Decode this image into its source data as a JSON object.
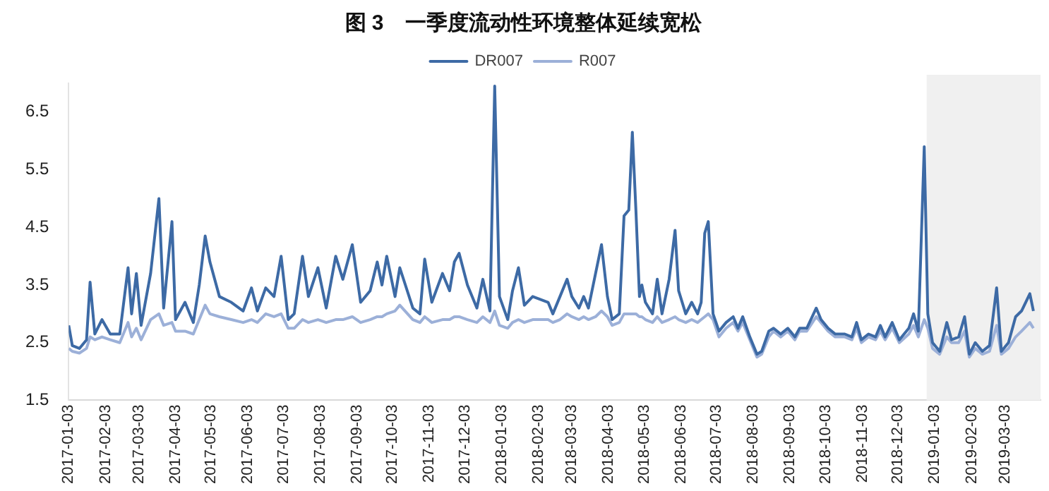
{
  "chart_data": {
    "type": "line",
    "title": "图 3　一季度流动性环境整体延续宽松",
    "legend": "top",
    "grid": false,
    "marker": "none",
    "line_style": "solid",
    "xlim": [
      "2017-01-03",
      "2019-04-02"
    ],
    "xticks": [
      "2017-01-03",
      "2017-02-03",
      "2017-03-03",
      "2017-04-03",
      "2017-05-03",
      "2017-06-03",
      "2017-07-03",
      "2017-08-03",
      "2017-09-03",
      "2017-10-03",
      "2017-11-03",
      "2017-12-03",
      "2018-01-03",
      "2018-02-03",
      "2018-03-03",
      "2018-04-03",
      "2018-05-03",
      "2018-06-03",
      "2018-07-03",
      "2018-08-03",
      "2018-09-03",
      "2018-10-03",
      "2018-11-03",
      "2018-12-03",
      "2019-01-03",
      "2019-02-03",
      "2019-03-03"
    ],
    "ylim": [
      1.5,
      7.0
    ],
    "yticks": [
      1.5,
      2.5,
      3.5,
      4.5,
      5.5,
      6.5
    ],
    "bands": [
      {
        "axis": "x",
        "from": "2018-12-27",
        "to": "2019-04-02",
        "color": "#f0f0f0"
      }
    ],
    "x": [
      "2017-01-03",
      "2017-01-06",
      "2017-01-12",
      "2017-01-18",
      "2017-01-21",
      "2017-01-25",
      "2017-01-31",
      "2017-02-07",
      "2017-02-15",
      "2017-02-22",
      "2017-02-25",
      "2017-03-01",
      "2017-03-05",
      "2017-03-13",
      "2017-03-20",
      "2017-03-24",
      "2017-03-31",
      "2017-04-03",
      "2017-04-11",
      "2017-04-18",
      "2017-04-23",
      "2017-04-28",
      "2017-05-02",
      "2017-05-10",
      "2017-05-20",
      "2017-05-30",
      "2017-06-06",
      "2017-06-11",
      "2017-06-18",
      "2017-06-25",
      "2017-07-01",
      "2017-07-07",
      "2017-07-12",
      "2017-07-19",
      "2017-07-24",
      "2017-08-01",
      "2017-08-08",
      "2017-08-16",
      "2017-08-22",
      "2017-08-30",
      "2017-09-06",
      "2017-09-14",
      "2017-09-20",
      "2017-09-24",
      "2017-09-28",
      "2017-10-05",
      "2017-10-09",
      "2017-10-20",
      "2017-10-26",
      "2017-10-30",
      "2017-11-05",
      "2017-11-14",
      "2017-11-20",
      "2017-11-24",
      "2017-11-28",
      "2017-12-05",
      "2017-12-13",
      "2017-12-18",
      "2017-12-24",
      "2017-12-28",
      "2018-01-01",
      "2018-01-08",
      "2018-01-12",
      "2018-01-17",
      "2018-01-22",
      "2018-01-29",
      "2018-02-11",
      "2018-02-15",
      "2018-02-21",
      "2018-02-27",
      "2018-03-03",
      "2018-03-09",
      "2018-03-13",
      "2018-03-17",
      "2018-03-23",
      "2018-03-28",
      "2018-04-02",
      "2018-04-06",
      "2018-04-12",
      "2018-04-16",
      "2018-04-20",
      "2018-04-23",
      "2018-04-26",
      "2018-04-29",
      "2018-05-01",
      "2018-05-04",
      "2018-05-10",
      "2018-05-14",
      "2018-05-18",
      "2018-05-24",
      "2018-05-29",
      "2018-06-01",
      "2018-06-07",
      "2018-06-12",
      "2018-06-17",
      "2018-06-20",
      "2018-06-23",
      "2018-06-26",
      "2018-06-30",
      "2018-07-05",
      "2018-07-11",
      "2018-07-17",
      "2018-07-21",
      "2018-07-25",
      "2018-07-31",
      "2018-08-06",
      "2018-08-10",
      "2018-08-16",
      "2018-08-20",
      "2018-08-26",
      "2018-09-01",
      "2018-09-07",
      "2018-09-11",
      "2018-09-17",
      "2018-09-25",
      "2018-09-29",
      "2018-10-05",
      "2018-10-11",
      "2018-10-19",
      "2018-10-25",
      "2018-10-29",
      "2018-11-02",
      "2018-11-08",
      "2018-11-14",
      "2018-11-18",
      "2018-11-22",
      "2018-11-28",
      "2018-12-04",
      "2018-12-12",
      "2018-12-16",
      "2018-12-20",
      "2018-12-25",
      "2018-12-28",
      "2019-01-01",
      "2019-01-07",
      "2019-01-13",
      "2019-01-17",
      "2019-01-23",
      "2019-01-28",
      "2019-02-01",
      "2019-02-06",
      "2019-02-12",
      "2019-02-18",
      "2019-02-24",
      "2019-02-28",
      "2019-03-06",
      "2019-03-12",
      "2019-03-17",
      "2019-03-24",
      "2019-03-27"
    ],
    "series": [
      {
        "name": "DR007",
        "color": "#3d6aa5",
        "values": [
          2.8,
          2.45,
          2.4,
          2.55,
          3.55,
          2.65,
          2.9,
          2.65,
          2.65,
          3.8,
          3.0,
          3.7,
          2.8,
          3.7,
          5.0,
          3.1,
          4.6,
          2.9,
          3.2,
          2.85,
          3.5,
          4.35,
          3.9,
          3.3,
          3.2,
          3.05,
          3.45,
          3.05,
          3.45,
          3.3,
          4.0,
          2.9,
          3.0,
          4.0,
          3.3,
          3.8,
          3.1,
          4.0,
          3.6,
          4.2,
          3.2,
          3.4,
          3.9,
          3.5,
          4.0,
          3.3,
          3.8,
          3.1,
          3.0,
          3.95,
          3.2,
          3.7,
          3.4,
          3.9,
          4.05,
          3.5,
          3.1,
          3.6,
          3.05,
          6.95,
          3.3,
          2.9,
          3.4,
          3.8,
          3.15,
          3.3,
          3.2,
          3.0,
          3.3,
          3.6,
          3.3,
          3.1,
          3.3,
          3.1,
          3.7,
          4.2,
          3.3,
          2.9,
          3.0,
          4.7,
          4.8,
          6.15,
          4.8,
          3.3,
          3.5,
          3.2,
          3.0,
          3.6,
          3.0,
          3.6,
          4.45,
          3.4,
          3.0,
          3.2,
          3.0,
          3.2,
          4.4,
          4.6,
          3.0,
          2.7,
          2.85,
          2.95,
          2.75,
          2.95,
          2.6,
          2.3,
          2.35,
          2.7,
          2.75,
          2.65,
          2.75,
          2.6,
          2.75,
          2.75,
          3.1,
          2.9,
          2.75,
          2.65,
          2.65,
          2.6,
          2.85,
          2.55,
          2.65,
          2.6,
          2.8,
          2.6,
          2.85,
          2.55,
          2.75,
          3.0,
          2.7,
          5.9,
          3.0,
          2.5,
          2.35,
          2.85,
          2.55,
          2.6,
          2.95,
          2.3,
          2.5,
          2.35,
          2.45,
          3.45,
          2.35,
          2.5,
          2.95,
          3.05,
          3.35,
          3.05
        ]
      },
      {
        "name": "R007",
        "color": "#9cb0d8",
        "values": [
          2.4,
          2.35,
          2.32,
          2.4,
          2.6,
          2.55,
          2.6,
          2.55,
          2.5,
          2.85,
          2.6,
          2.75,
          2.55,
          2.9,
          3.0,
          2.8,
          2.85,
          2.7,
          2.7,
          2.65,
          2.9,
          3.15,
          3.0,
          2.95,
          2.9,
          2.85,
          2.9,
          2.85,
          3.0,
          2.95,
          3.0,
          2.75,
          2.75,
          2.9,
          2.85,
          2.9,
          2.85,
          2.9,
          2.9,
          2.95,
          2.85,
          2.9,
          2.95,
          2.95,
          3.0,
          3.05,
          3.15,
          2.9,
          2.85,
          2.95,
          2.85,
          2.9,
          2.9,
          2.95,
          2.95,
          2.9,
          2.85,
          2.95,
          2.85,
          3.05,
          2.8,
          2.75,
          2.85,
          2.9,
          2.85,
          2.9,
          2.9,
          2.85,
          2.9,
          3.0,
          2.95,
          2.9,
          2.95,
          2.9,
          2.95,
          3.05,
          2.95,
          2.8,
          2.85,
          3.0,
          3.0,
          3.0,
          3.0,
          2.95,
          2.95,
          2.9,
          2.85,
          2.95,
          2.85,
          2.9,
          2.95,
          2.9,
          2.85,
          2.9,
          2.85,
          2.9,
          2.95,
          3.0,
          2.9,
          2.6,
          2.75,
          2.85,
          2.7,
          2.85,
          2.55,
          2.25,
          2.3,
          2.6,
          2.7,
          2.6,
          2.7,
          2.55,
          2.7,
          2.7,
          2.95,
          2.85,
          2.7,
          2.6,
          2.6,
          2.55,
          2.75,
          2.5,
          2.6,
          2.55,
          2.7,
          2.55,
          2.75,
          2.5,
          2.65,
          2.8,
          2.6,
          2.9,
          2.75,
          2.4,
          2.3,
          2.6,
          2.5,
          2.5,
          2.7,
          2.25,
          2.4,
          2.3,
          2.35,
          2.8,
          2.3,
          2.4,
          2.6,
          2.7,
          2.85,
          2.75
        ]
      }
    ]
  }
}
